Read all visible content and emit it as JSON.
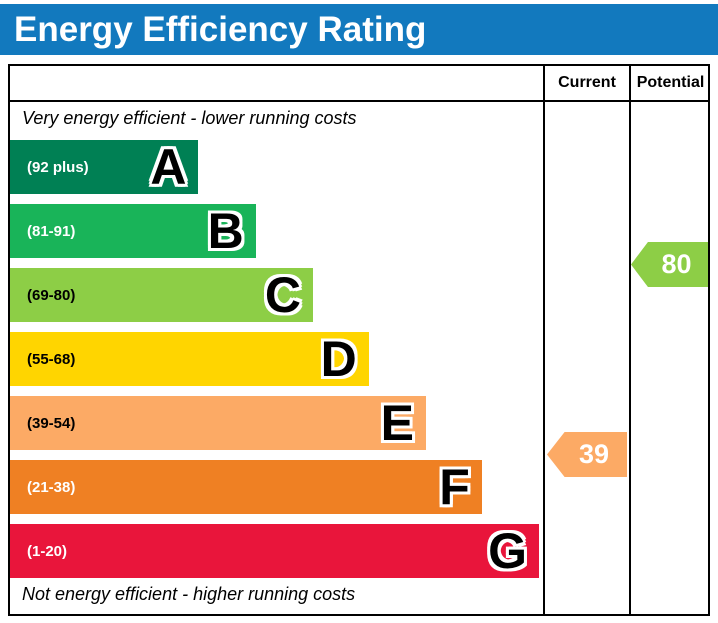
{
  "title": "Energy Efficiency Rating",
  "header": {
    "current": "Current",
    "potential": "Potential"
  },
  "notes": {
    "top": "Very energy efficient - lower running costs",
    "bottom": "Not energy efficient - higher running costs"
  },
  "chart_data": {
    "type": "bar",
    "title": "Energy Efficiency Rating",
    "categories": [
      "A",
      "B",
      "C",
      "D",
      "E",
      "F",
      "G"
    ],
    "bands": [
      {
        "letter": "A",
        "range_label": "(92 plus)",
        "color": "#008054",
        "label_color": "#ffffff",
        "width": "27%"
      },
      {
        "letter": "B",
        "range_label": "(81-91)",
        "color": "#19b459",
        "label_color": "#ffffff",
        "width": "35.2%"
      },
      {
        "letter": "C",
        "range_label": "(69-80)",
        "color": "#8dce46",
        "label_color": "#000000",
        "width": "43.4%"
      },
      {
        "letter": "D",
        "range_label": "(55-68)",
        "color": "#ffd500",
        "label_color": "#000000",
        "width": "51.4%"
      },
      {
        "letter": "E",
        "range_label": "(39-54)",
        "color": "#fcaa65",
        "label_color": "#000000",
        "width": "59.6%"
      },
      {
        "letter": "F",
        "range_label": "(21-38)",
        "color": "#ef8023",
        "label_color": "#ffffff",
        "width": "67.6%"
      },
      {
        "letter": "G",
        "range_label": "(1-20)",
        "color": "#e9153b",
        "label_color": "#ffffff",
        "width": "75.8%"
      }
    ],
    "current": {
      "value": 39,
      "band": "E",
      "color": "#fcaa65"
    },
    "potential": {
      "value": 80,
      "band": "C",
      "color": "#8dce46"
    }
  },
  "colors": {
    "title_bg": "#1279be",
    "title_text": "#ffffff",
    "border": "#000000"
  }
}
